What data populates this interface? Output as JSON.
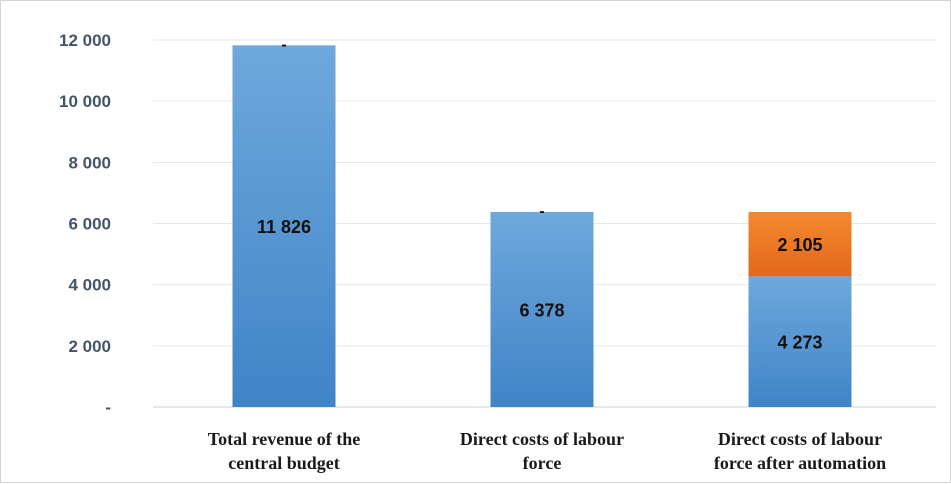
{
  "chart_data": {
    "type": "bar",
    "stacked": true,
    "categories": [
      [
        "Total revenue of the",
        "central budget"
      ],
      [
        "Direct costs of labour",
        "force"
      ],
      [
        "Direct costs of labour",
        "force after automation"
      ]
    ],
    "series": [
      {
        "color": "#5b9bd5",
        "values": [
          11826,
          6378,
          4273
        ],
        "labels": [
          "11 826",
          "6 378",
          "4 273"
        ]
      },
      {
        "color": "#ed7d31",
        "values": [
          0,
          0,
          2105
        ],
        "labels": [
          "-",
          "-",
          "2 105"
        ]
      }
    ],
    "ylim": [
      0,
      12000
    ],
    "yticks": [
      0,
      2000,
      4000,
      6000,
      8000,
      10000,
      12000
    ],
    "ytick_labels": [
      "-",
      "2 000",
      "4 000",
      "6 000",
      "8 000",
      "10 000",
      "12 000"
    ],
    "grid": true,
    "legend": "none"
  }
}
